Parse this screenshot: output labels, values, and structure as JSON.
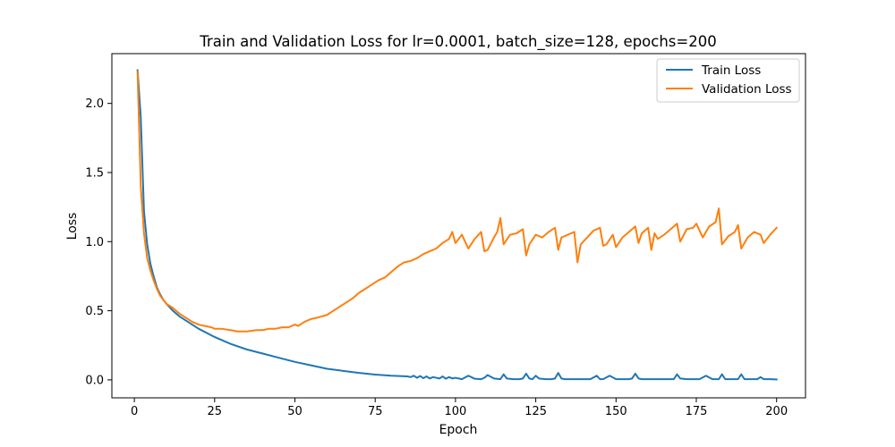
{
  "chart_data": {
    "type": "line",
    "title": "Train and Validation Loss for lr=0.0001, batch_size=128, epochs=200",
    "xlabel": "Epoch",
    "ylabel": "Loss",
    "xlim": [
      -7,
      209
    ],
    "ylim": [
      -0.13,
      2.36
    ],
    "xticks": [
      0,
      25,
      50,
      75,
      100,
      125,
      150,
      175,
      200
    ],
    "yticks": [
      0.0,
      0.5,
      1.0,
      1.5,
      2.0
    ],
    "ytick_labels": [
      "0.0",
      "0.5",
      "1.0",
      "1.5",
      "2.0"
    ],
    "grid": false,
    "legend_position": "top-right",
    "series": [
      {
        "name": "Train Loss",
        "color": "#1f77b4",
        "x": [
          1,
          2,
          3,
          4,
          5,
          6,
          7,
          8,
          9,
          10,
          12,
          14,
          16,
          18,
          20,
          25,
          30,
          35,
          40,
          45,
          50,
          55,
          60,
          65,
          70,
          75,
          80,
          85,
          86,
          87,
          88,
          89,
          90,
          91,
          92,
          93,
          94,
          95,
          96,
          97,
          98,
          99,
          100,
          102,
          104,
          106,
          108,
          109,
          110,
          112,
          114,
          115,
          116,
          118,
          120,
          121,
          122,
          123,
          124,
          125,
          126,
          128,
          130,
          131,
          132,
          133,
          134,
          136,
          138,
          140,
          142,
          144,
          145,
          146,
          148,
          150,
          152,
          154,
          155,
          156,
          157,
          158,
          160,
          162,
          164,
          166,
          168,
          169,
          170,
          172,
          174,
          176,
          178,
          180,
          181,
          182,
          183,
          184,
          186,
          188,
          189,
          190,
          192,
          194,
          195,
          196,
          198,
          200
        ],
        "values": [
          2.24,
          1.9,
          1.22,
          0.98,
          0.84,
          0.75,
          0.67,
          0.62,
          0.58,
          0.55,
          0.5,
          0.46,
          0.43,
          0.4,
          0.37,
          0.31,
          0.26,
          0.22,
          0.19,
          0.16,
          0.13,
          0.105,
          0.08,
          0.065,
          0.05,
          0.038,
          0.03,
          0.025,
          0.02,
          0.03,
          0.015,
          0.028,
          0.012,
          0.025,
          0.01,
          0.02,
          0.015,
          0.01,
          0.025,
          0.008,
          0.02,
          0.01,
          0.015,
          0.005,
          0.03,
          0.008,
          0.005,
          0.015,
          0.035,
          0.01,
          0.005,
          0.04,
          0.01,
          0.005,
          0.005,
          0.01,
          0.045,
          0.01,
          0.005,
          0.03,
          0.01,
          0.005,
          0.005,
          0.01,
          0.05,
          0.01,
          0.005,
          0.005,
          0.005,
          0.005,
          0.005,
          0.03,
          0.005,
          0.005,
          0.03,
          0.005,
          0.005,
          0.005,
          0.01,
          0.045,
          0.01,
          0.005,
          0.005,
          0.005,
          0.005,
          0.005,
          0.005,
          0.04,
          0.01,
          0.005,
          0.005,
          0.005,
          0.03,
          0.005,
          0.005,
          0.005,
          0.04,
          0.005,
          0.005,
          0.005,
          0.04,
          0.005,
          0.005,
          0.005,
          0.02,
          0.005,
          0.005,
          0.003
        ]
      },
      {
        "name": "Validation Loss",
        "color": "#ff7f0e",
        "x": [
          1,
          2,
          3,
          4,
          5,
          6,
          7,
          8,
          9,
          10,
          12,
          14,
          16,
          18,
          20,
          22,
          24,
          25,
          27,
          30,
          32,
          35,
          38,
          40,
          42,
          44,
          46,
          48,
          50,
          51,
          53,
          55,
          57,
          60,
          62,
          64,
          66,
          68,
          70,
          72,
          74,
          76,
          78,
          80,
          82,
          84,
          86,
          88,
          90,
          92,
          94,
          96,
          98,
          99,
          100,
          102,
          104,
          106,
          108,
          109,
          110,
          112,
          113,
          114,
          115,
          117,
          119,
          121,
          122,
          123,
          125,
          127,
          129,
          131,
          132,
          133,
          135,
          137,
          138,
          139,
          141,
          143,
          145,
          146,
          147,
          149,
          150,
          152,
          154,
          156,
          157,
          158,
          160,
          161,
          162,
          163,
          165,
          167,
          169,
          170,
          172,
          174,
          175,
          177,
          179,
          181,
          182,
          183,
          185,
          187,
          188,
          189,
          191,
          193,
          195,
          196,
          198,
          200
        ],
        "values": [
          2.23,
          1.4,
          1.06,
          0.88,
          0.79,
          0.72,
          0.66,
          0.61,
          0.58,
          0.55,
          0.52,
          0.48,
          0.45,
          0.42,
          0.4,
          0.39,
          0.38,
          0.37,
          0.37,
          0.36,
          0.35,
          0.35,
          0.36,
          0.36,
          0.37,
          0.37,
          0.38,
          0.38,
          0.4,
          0.39,
          0.42,
          0.44,
          0.45,
          0.47,
          0.5,
          0.53,
          0.56,
          0.59,
          0.63,
          0.66,
          0.69,
          0.72,
          0.74,
          0.78,
          0.82,
          0.85,
          0.86,
          0.88,
          0.91,
          0.93,
          0.95,
          0.99,
          1.02,
          1.07,
          0.99,
          1.05,
          0.95,
          1.02,
          1.07,
          0.93,
          0.94,
          1.03,
          1.07,
          1.17,
          0.98,
          1.05,
          1.06,
          1.09,
          0.9,
          0.98,
          1.05,
          1.03,
          1.07,
          1.1,
          0.94,
          1.03,
          1.05,
          1.07,
          0.85,
          0.98,
          1.03,
          1.08,
          1.1,
          0.97,
          0.98,
          1.05,
          0.96,
          1.03,
          1.07,
          1.11,
          0.99,
          1.06,
          1.1,
          0.94,
          1.06,
          1.02,
          1.05,
          1.09,
          1.13,
          1.0,
          1.09,
          1.1,
          1.13,
          1.03,
          1.11,
          1.14,
          1.24,
          0.98,
          1.04,
          1.07,
          1.12,
          0.95,
          1.03,
          1.07,
          1.05,
          0.99,
          1.05,
          1.1
        ]
      }
    ]
  }
}
